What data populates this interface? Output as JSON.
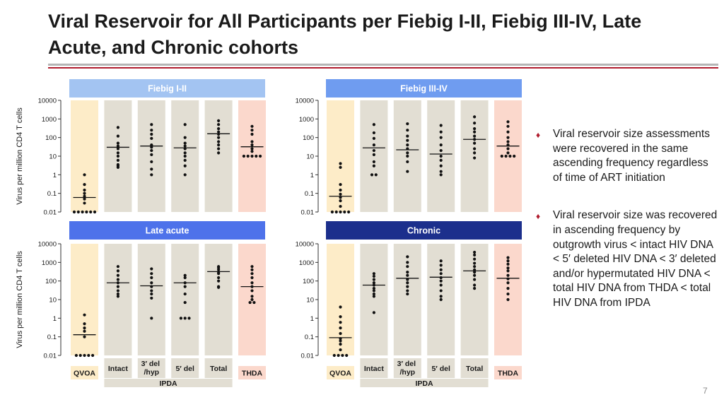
{
  "slide": {
    "title": "Viral Reservoir for All Participants per Fiebig I-II, Fiebig III-IV, Late Acute, and Chronic cohorts",
    "bullets": [
      "Viral reservoir size assessments were recovered in the same ascending frequency regardless of time of ART initiation",
      "Viral reservoir size was recovered in ascending frequency by outgrowth virus < intact HIV DNA < 5′ deleted HIV DNA < 3′ deleted and/or hypermutated HIV DNA < total HIV DNA from THDA < total HIV DNA from IPDA"
    ],
    "page_number": "7"
  },
  "chart_data": [
    {
      "type": "scatter",
      "title": "Fiebig I-II",
      "ylabel": "Virus per million CD4 T cells",
      "yscale": "log",
      "ylim": [
        0.01,
        10000
      ],
      "yticks": [
        "0.01",
        "0.1",
        "1",
        "10",
        "100",
        "1000",
        "10000"
      ],
      "categories": [
        "QVOA",
        "Intact",
        "3′ del /hyp",
        "5′ del",
        "Total",
        "THDA"
      ],
      "group_label": "IPDA",
      "header_color": "#a3c4f2",
      "medians": [
        0.06,
        30,
        35,
        28,
        160,
        32
      ],
      "points": [
        [
          0.01,
          0.01,
          0.01,
          0.01,
          0.01,
          0.01,
          0.03,
          0.05,
          0.07,
          0.1,
          0.15,
          0.3,
          1
        ],
        [
          2.5,
          3,
          3.5,
          6,
          10,
          15,
          25,
          35,
          50,
          120,
          350
        ],
        [
          1,
          2,
          5,
          12,
          20,
          30,
          40,
          90,
          150,
          250,
          500
        ],
        [
          1,
          3,
          6,
          10,
          15,
          25,
          35,
          50,
          100,
          500
        ],
        [
          15,
          25,
          40,
          60,
          100,
          150,
          200,
          300,
          500,
          800
        ],
        [
          10,
          10,
          10,
          10,
          10,
          18,
          25,
          40,
          60,
          150,
          250,
          400
        ]
      ]
    },
    {
      "type": "scatter",
      "title": "Fiebig III-IV",
      "yscale": "log",
      "ylim": [
        0.01,
        10000
      ],
      "yticks": [
        "0.01",
        "0.1",
        "1",
        "10",
        "100",
        "1000",
        "10000"
      ],
      "categories": [
        "QVOA",
        "Intact",
        "3′ del /hyp",
        "5′ del",
        "Total",
        "THDA"
      ],
      "group_label": "IPDA",
      "header_color": "#6f9cf0",
      "medians": [
        0.07,
        28,
        22,
        13,
        80,
        35
      ],
      "points": [
        [
          0.01,
          0.01,
          0.01,
          0.01,
          0.01,
          0.02,
          0.04,
          0.06,
          0.09,
          0.15,
          0.3,
          2.5,
          4
        ],
        [
          1,
          1,
          3,
          5,
          12,
          20,
          40,
          90,
          180,
          500
        ],
        [
          1.5,
          5,
          10,
          15,
          25,
          40,
          70,
          120,
          250,
          550
        ],
        [
          1,
          1.5,
          3,
          6,
          10,
          20,
          40,
          100,
          200,
          450
        ],
        [
          8,
          15,
          25,
          50,
          80,
          120,
          200,
          300,
          600,
          1300
        ],
        [
          10,
          10,
          10,
          10,
          15,
          25,
          40,
          60,
          100,
          200,
          400,
          700
        ]
      ]
    },
    {
      "type": "scatter",
      "title": "Late acute",
      "ylabel": "Virus per million CD4 T cells",
      "yscale": "log",
      "ylim": [
        0.01,
        10000
      ],
      "yticks": [
        "0.01",
        "0.1",
        "1",
        "10",
        "100",
        "1000",
        "10000"
      ],
      "categories": [
        "QVOA",
        "Intact",
        "3′ del /hyp",
        "5′ del",
        "Total",
        "THDA"
      ],
      "group_label": "IPDA",
      "header_color": "#4e72ea",
      "medians": [
        0.13,
        80,
        55,
        80,
        320,
        50
      ],
      "points": [
        [
          0.01,
          0.01,
          0.01,
          0.01,
          0.01,
          0.1,
          0.2,
          0.3,
          0.5,
          1.5
        ],
        [
          15,
          20,
          30,
          50,
          80,
          120,
          200,
          350,
          600
        ],
        [
          1,
          12,
          20,
          30,
          50,
          80,
          150,
          250,
          450
        ],
        [
          1,
          1,
          1,
          7,
          20,
          50,
          80,
          150,
          200
        ],
        [
          45,
          50,
          100,
          150,
          250,
          300,
          400,
          500,
          600
        ],
        [
          7,
          7,
          10,
          15,
          30,
          50,
          80,
          150,
          250,
          400,
          600
        ]
      ]
    },
    {
      "type": "scatter",
      "title": "Chronic",
      "yscale": "log",
      "ylim": [
        0.01,
        10000
      ],
      "yticks": [
        "0.01",
        "0.1",
        "1",
        "10",
        "100",
        "1000",
        "10000"
      ],
      "categories": [
        "QVOA",
        "Intact",
        "3′ del /hyp",
        "5′ del",
        "Total",
        "THDA"
      ],
      "group_label": "IPDA",
      "header_color": "#1c2f8c",
      "medians": [
        0.09,
        60,
        140,
        160,
        350,
        140
      ],
      "points": [
        [
          0.01,
          0.01,
          0.01,
          0.01,
          0.02,
          0.04,
          0.06,
          0.08,
          0.15,
          0.3,
          0.6,
          1.2,
          4
        ],
        [
          2,
          15,
          20,
          30,
          40,
          60,
          80,
          120,
          180,
          250
        ],
        [
          20,
          30,
          50,
          80,
          120,
          200,
          300,
          600,
          1000,
          2000
        ],
        [
          10,
          15,
          30,
          60,
          100,
          150,
          250,
          400,
          700,
          1200
        ],
        [
          40,
          60,
          120,
          200,
          300,
          400,
          600,
          900,
          1500,
          2500,
          3500
        ],
        [
          10,
          20,
          40,
          80,
          130,
          200,
          350,
          500,
          800,
          1200,
          1800
        ]
      ]
    }
  ]
}
